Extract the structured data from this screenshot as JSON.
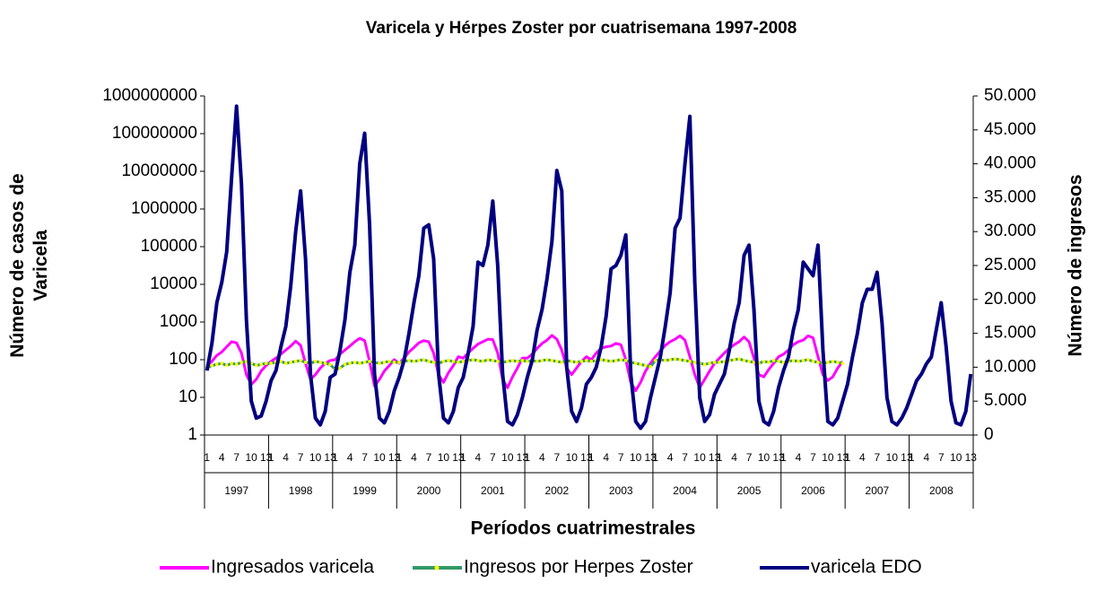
{
  "chart_data": {
    "type": "line",
    "title": "Varicela y Hérpes Zoster por cuatrisemana 1997-2008",
    "x_label": "Períodos cuatrimestrales",
    "y_label": "Número de casos de Varicela",
    "y2_label": "Número de ingresos",
    "categories": [
      "1",
      null,
      null,
      "4",
      null,
      null,
      "7",
      null,
      null,
      "10",
      null,
      null,
      "13",
      "1",
      null,
      null,
      "4",
      null,
      null,
      "7",
      null,
      null,
      "10",
      null,
      null,
      "13",
      "1",
      null,
      null,
      "4",
      null,
      null,
      "7",
      null,
      null,
      "10",
      null,
      null,
      "13",
      "1",
      null,
      null,
      "4",
      null,
      null,
      "7",
      null,
      null,
      "10",
      null,
      null,
      "13",
      "1",
      null,
      null,
      "4",
      null,
      null,
      "7",
      null,
      null,
      "10",
      null,
      null,
      "13",
      "1",
      null,
      null,
      "4",
      null,
      null,
      "7",
      null,
      null,
      "10",
      null,
      null,
      "13",
      "1",
      null,
      null,
      "4",
      null,
      null,
      "7",
      null,
      null,
      "10",
      null,
      null,
      "13",
      "1",
      null,
      null,
      "4",
      null,
      null,
      "7",
      null,
      null,
      "10",
      null,
      null,
      "13",
      "1",
      null,
      null,
      "4",
      null,
      null,
      "7",
      null,
      null,
      "10",
      null,
      null,
      "13",
      "1",
      null,
      null,
      "4",
      null,
      null,
      "7",
      null,
      null,
      "10",
      null,
      null,
      "13",
      "1",
      null,
      null,
      "4",
      null,
      null,
      "7",
      null,
      null,
      "10",
      null,
      null,
      "13",
      "1",
      null,
      null,
      "4",
      null,
      null,
      "7",
      null,
      null,
      "10",
      null,
      null,
      "13"
    ],
    "groups": [
      "1997",
      "1998",
      "1999",
      "2000",
      "2001",
      "2002",
      "2003",
      "2004",
      "2005",
      "2006",
      "2007",
      "2008"
    ],
    "ylog": true,
    "ylim": [
      1,
      1000000000
    ],
    "yticks": [
      1,
      10,
      100,
      1000,
      10000,
      100000,
      1000000,
      10000000,
      100000000,
      1000000000
    ],
    "y2lim": [
      0,
      50000
    ],
    "y2ticks": [
      0,
      {
        "value": 5000,
        "label": "5.000"
      },
      {
        "value": 10000,
        "label": "10.000"
      },
      {
        "value": 15000,
        "label": "15.000"
      },
      {
        "value": 20000,
        "label": "20.000"
      },
      {
        "value": 25000,
        "label": "25.000"
      },
      {
        "value": 30000,
        "label": "30.000"
      },
      {
        "value": 35000,
        "label": "35.000"
      },
      {
        "value": 40000,
        "label": "40.000"
      },
      {
        "value": 45000,
        "label": "45.000"
      },
      {
        "value": 50000,
        "label": "50.000"
      }
    ],
    "legend": "bottom",
    "series": [
      {
        "name": "Ingresados varicela",
        "color": "#ff00ff",
        "values": [
          70,
          90,
          130,
          160,
          220,
          300,
          280,
          150,
          40,
          22,
          30,
          50,
          70,
          90,
          110,
          140,
          180,
          230,
          310,
          240,
          80,
          30,
          40,
          60,
          80,
          95,
          100,
          140,
          180,
          230,
          300,
          370,
          320,
          90,
          20,
          30,
          50,
          70,
          100,
          80,
          110,
          160,
          210,
          280,
          320,
          300,
          150,
          40,
          25,
          45,
          70,
          120,
          110,
          150,
          200,
          260,
          300,
          350,
          340,
          150,
          30,
          18,
          35,
          60,
          110,
          110,
          140,
          200,
          270,
          330,
          440,
          350,
          180,
          60,
          40,
          60,
          90,
          120,
          100,
          150,
          200,
          220,
          230,
          270,
          250,
          100,
          25,
          15,
          25,
          50,
          80,
          120,
          170,
          240,
          300,
          350,
          430,
          330,
          120,
          40,
          18,
          30,
          50,
          80,
          110,
          150,
          200,
          250,
          300,
          400,
          300,
          110,
          40,
          35,
          55,
          80,
          120,
          140,
          180,
          250,
          300,
          330,
          430,
          380,
          120,
          40,
          28,
          35,
          60,
          90,
          null,
          null,
          null,
          null,
          null,
          null,
          null,
          null,
          null,
          null,
          null,
          null,
          null,
          null,
          null,
          null,
          null,
          null,
          null,
          null,
          null,
          null,
          null,
          null,
          null,
          null
        ]
      },
      {
        "name": "Ingresos por Herpes Zoster",
        "color": "#339966",
        "marker_color": "#ffff00",
        "values": [
          60,
          70,
          75,
          80,
          70,
          80,
          75,
          85,
          90,
          80,
          70,
          75,
          80,
          80,
          85,
          90,
          80,
          85,
          90,
          95,
          85,
          80,
          90,
          85,
          80,
          75,
          55,
          60,
          75,
          80,
          85,
          80,
          85,
          90,
          85,
          80,
          85,
          90,
          85,
          85,
          90,
          95,
          90,
          95,
          100,
          90,
          85,
          80,
          90,
          95,
          90,
          85,
          90,
          95,
          100,
          95,
          90,
          100,
          95,
          90,
          85,
          90,
          95,
          90,
          95,
          90,
          95,
          90,
          95,
          100,
          95,
          90,
          85,
          95,
          90,
          85,
          90,
          95,
          90,
          95,
          100,
          95,
          90,
          95,
          100,
          95,
          85,
          80,
          75,
          70,
          65,
          95,
          100,
          95,
          100,
          105,
          100,
          95,
          90,
          85,
          80,
          75,
          80,
          85,
          85,
          90,
          95,
          100,
          105,
          95,
          90,
          85,
          80,
          90,
          85,
          95,
          90,
          85,
          90,
          95,
          90,
          95,
          100,
          90,
          85,
          80,
          85,
          90,
          85,
          80,
          null,
          null,
          null,
          null,
          null,
          null,
          null,
          null,
          null,
          null,
          null,
          null,
          null,
          null,
          null,
          null,
          null,
          null,
          null,
          null,
          null,
          null,
          null,
          null,
          null,
          null
        ]
      },
      {
        "name": "varicela EDO",
        "color": "#000080",
        "axis": "y2",
        "values": [
          9500,
          13500,
          19500,
          22500,
          27000,
          38000,
          48500,
          37000,
          17000,
          5000,
          2500,
          2800,
          5000,
          8000,
          9500,
          13000,
          16000,
          22000,
          30000,
          36000,
          26000,
          9000,
          2500,
          1500,
          3500,
          8500,
          9000,
          12500,
          17000,
          24000,
          28000,
          40000,
          44500,
          31000,
          9000,
          2500,
          1800,
          3500,
          6500,
          8500,
          11000,
          15000,
          19500,
          23500,
          30500,
          31000,
          26000,
          9000,
          2500,
          1800,
          3500,
          7000,
          8500,
          12000,
          16000,
          25500,
          25000,
          28000,
          34500,
          25000,
          9000,
          2000,
          1500,
          3000,
          5500,
          8500,
          11000,
          15500,
          18500,
          23000,
          28500,
          39000,
          36000,
          10000,
          3500,
          2000,
          4000,
          7500,
          8500,
          10000,
          13000,
          17500,
          24500,
          25000,
          26500,
          29500,
          9000,
          2000,
          1000,
          2000,
          5500,
          8500,
          11500,
          16000,
          21000,
          30500,
          32000,
          40000,
          47000,
          22500,
          5500,
          2000,
          3000,
          6000,
          7500,
          9000,
          12500,
          16500,
          19500,
          26500,
          28000,
          18500,
          5000,
          2000,
          1500,
          3500,
          7000,
          9500,
          11500,
          15500,
          18500,
          25500,
          24500,
          23500,
          28000,
          12500,
          2000,
          1500,
          2500,
          5000,
          7500,
          11500,
          15000,
          19500,
          21500,
          21500,
          24000,
          16500,
          5500,
          2000,
          1500,
          2500,
          4000,
          6000,
          8000,
          9000,
          10500,
          11500,
          15500,
          19500,
          13000,
          5000,
          1800,
          1500,
          3500,
          9000
        ]
      }
    ]
  }
}
